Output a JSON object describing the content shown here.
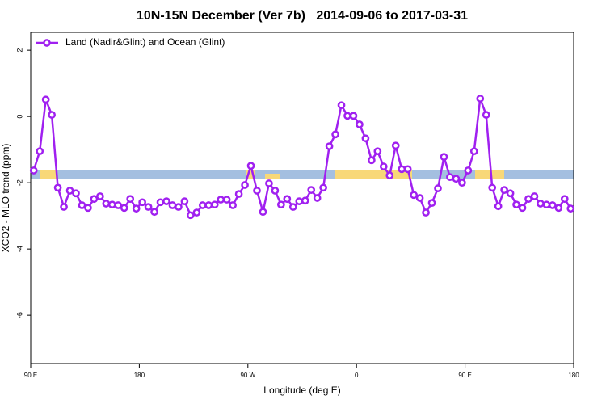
{
  "chart_data": {
    "type": "line",
    "title": "10N-15N December (Ver 7b)   2014-09-06 to 2017-03-31",
    "x_label": "Longitude (deg E)",
    "y_label": "XCO2 - MLO trend (ppm)",
    "x": [
      92.5,
      97.5,
      102.5,
      107.5,
      112.5,
      117.5,
      122.5,
      127.5,
      132.5,
      137.5,
      142.5,
      147.5,
      152.5,
      157.5,
      162.5,
      167.5,
      172.5,
      177.5,
      182.5,
      187.5,
      192.5,
      197.5,
      202.5,
      207.5,
      212.5,
      217.5,
      222.5,
      227.5,
      232.5,
      237.5,
      242.5,
      247.5,
      252.5,
      257.5,
      262.5,
      267.5,
      272.5,
      277.5,
      282.5,
      287.5,
      292.5,
      297.5,
      302.5,
      307.5,
      312.5,
      317.5,
      322.5,
      327.5,
      332.5,
      337.5,
      342.5,
      347.5,
      352.5,
      357.5,
      362.5,
      367.5,
      372.5,
      377.5,
      382.5,
      387.5,
      392.5,
      397.5,
      402.5,
      407.5,
      412.5,
      417.5,
      422.5,
      427.5,
      432.5,
      437.5,
      442.5,
      447.5,
      452.5,
      457.5,
      462.5,
      467.5,
      472.5,
      477.5,
      482.5,
      487.5,
      492.5,
      497.5,
      502.5,
      507.5,
      512.5,
      517.5,
      522.5,
      527.5,
      532.5,
      537.5
    ],
    "series": [
      {
        "name": "Land (Nadir&Glint) and Ocean (Glint)",
        "color": "#a020f0",
        "values": [
          -1.63,
          -1.05,
          0.51,
          0.05,
          -2.15,
          -2.73,
          -2.24,
          -2.32,
          -2.68,
          -2.76,
          -2.49,
          -2.41,
          -2.63,
          -2.66,
          -2.68,
          -2.76,
          -2.49,
          -2.78,
          -2.59,
          -2.73,
          -2.88,
          -2.59,
          -2.56,
          -2.68,
          -2.73,
          -2.56,
          -2.98,
          -2.9,
          -2.68,
          -2.68,
          -2.66,
          -2.51,
          -2.51,
          -2.68,
          -2.34,
          -2.07,
          -1.49,
          -2.24,
          -2.88,
          -2.02,
          -2.24,
          -2.66,
          -2.49,
          -2.73,
          -2.56,
          -2.54,
          -2.22,
          -2.46,
          -2.15,
          -0.9,
          -0.54,
          0.34,
          0.02,
          0.02,
          -0.24,
          -0.66,
          -1.32,
          -1.05,
          -1.51,
          -1.78,
          -0.88,
          -1.59,
          -1.59,
          -2.37,
          -2.46,
          -2.9,
          -2.61,
          -2.17,
          -1.22,
          -1.83,
          -1.88,
          -2.0,
          -1.63,
          -1.05,
          0.54,
          0.05,
          -2.15,
          -2.71,
          -2.22,
          -2.32,
          -2.66,
          -2.76,
          -2.49,
          -2.41,
          -2.63,
          -2.66,
          -2.68,
          -2.76,
          -2.49,
          -2.78
        ]
      }
    ],
    "xlim": [
      90,
      540
    ],
    "xticks": [
      {
        "value": 90,
        "label": "90 E"
      },
      180,
      {
        "value": 270,
        "label": "90 W"
      },
      {
        "value": 360,
        "label": "0"
      },
      {
        "value": 450,
        "label": "90 E"
      },
      {
        "value": 540,
        "label": "180"
      }
    ],
    "ylim": [
      -7.46,
      2.54
    ],
    "yticks": [
      -6,
      -4,
      -2,
      0,
      2
    ],
    "legend": "top-left"
  }
}
